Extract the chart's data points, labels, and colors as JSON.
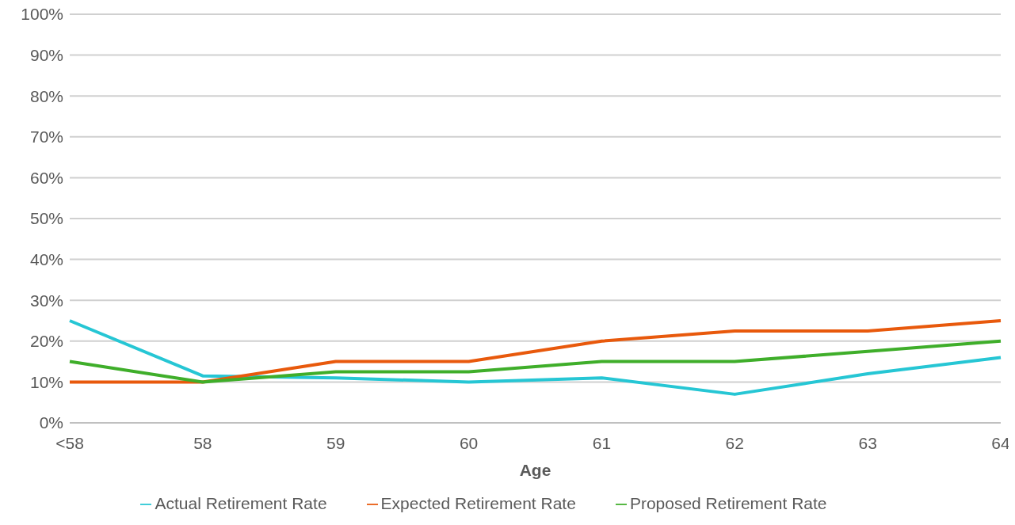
{
  "chart_data": {
    "type": "line",
    "xlabel": "Age",
    "categories": [
      "<58",
      "58",
      "59",
      "60",
      "61",
      "62",
      "63",
      "64"
    ],
    "series": [
      {
        "name": "Actual Retirement Rate",
        "color": "#26c6d4",
        "values": [
          25,
          11.5,
          11,
          10,
          11,
          7,
          12,
          16
        ]
      },
      {
        "name": "Expected Retirement Rate",
        "color": "#e8590c",
        "values": [
          10,
          10,
          15,
          15,
          20,
          22.5,
          22.5,
          25
        ]
      },
      {
        "name": "Proposed Retirement Rate",
        "color": "#3fae2a",
        "values": [
          15,
          10,
          12.5,
          12.5,
          15,
          15,
          17.5,
          20
        ]
      }
    ],
    "ylim": [
      0,
      100
    ],
    "yticks": [
      {
        "value": 0,
        "label": "0%"
      },
      {
        "value": 10,
        "label": "10%"
      },
      {
        "value": 20,
        "label": "20%"
      },
      {
        "value": 30,
        "label": "30%"
      },
      {
        "value": 40,
        "label": "40%"
      },
      {
        "value": 50,
        "label": "50%"
      },
      {
        "value": 60,
        "label": "60%"
      },
      {
        "value": 70,
        "label": "70%"
      },
      {
        "value": 80,
        "label": "80%"
      },
      {
        "value": 90,
        "label": "90%"
      },
      {
        "value": 100,
        "label": "100%"
      }
    ],
    "grid": "y",
    "legend": "bottom",
    "marker": "none",
    "line_style": "solid"
  }
}
